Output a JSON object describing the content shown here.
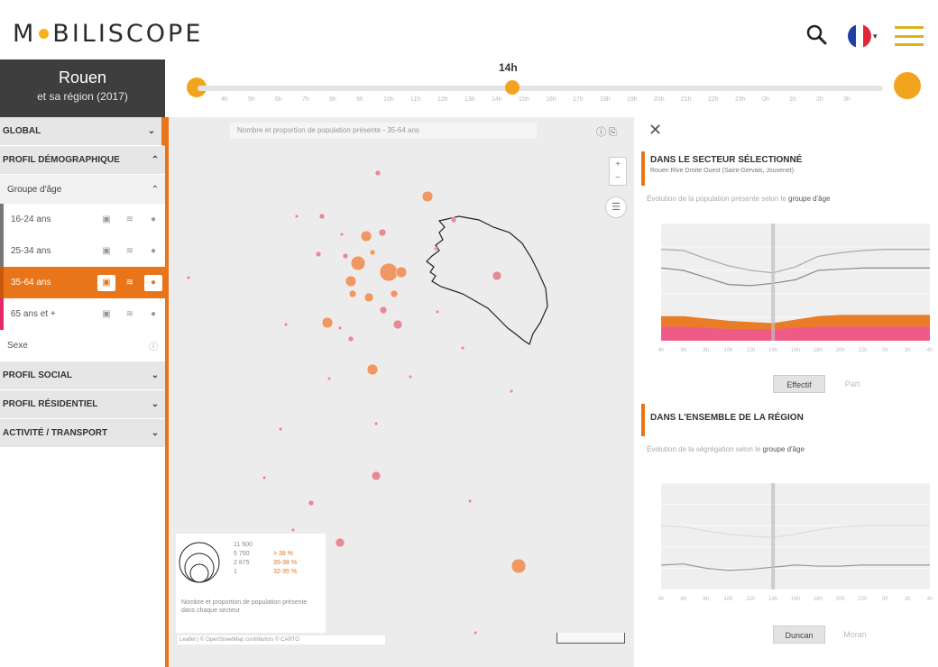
{
  "header": {
    "logo_left": "M",
    "logo_right": "BILISCOPE",
    "icons": [
      "search-icon",
      "flag-fr-icon",
      "menu-icon"
    ],
    "brand_color": "#f2a41e"
  },
  "sidebar": {
    "city": "Rouen",
    "city_sub": "et sa région (2017)",
    "global_label": "GLOBAL",
    "demo_label": "PROFIL DÉMOGRAPHIQUE",
    "sub_head": "Groupe d'âge",
    "items": [
      {
        "label": "16-24 ans",
        "bar_color": "#777"
      },
      {
        "label": "25-34 ans",
        "bar_color": "#777"
      },
      {
        "label": "35-64 ans",
        "bar_color": "#e8751a"
      },
      {
        "label": "65 ans et +",
        "bar_color": "#e5286a"
      },
      {
        "label": "Sexe",
        "bar_color": ""
      }
    ],
    "social_label": "PROFIL SOCIAL",
    "residential_label": "PROFIL RÉSIDENTIEL",
    "activity_label": "ACTIVITÉ / TRANSPORT",
    "accent": "#e8751a"
  },
  "timeline": {
    "current_hour": "14h",
    "hours": [
      "4h",
      "5h",
      "6h",
      "7h",
      "8h",
      "9h",
      "10h",
      "11h",
      "12h",
      "13h",
      "14h",
      "15h",
      "16h",
      "17h",
      "18h",
      "19h",
      "20h",
      "21h",
      "22h",
      "23h",
      "0h",
      "1h",
      "2h",
      "3h"
    ]
  },
  "map": {
    "selector_text": "Nombre et proportion de population présente - 35-64 ans",
    "map_buttons": "ⓘ ⎘",
    "legend": {
      "values": [
        "11 500",
        "5 750",
        "2 875",
        "1"
      ],
      "values_right": [
        "> 38 %",
        "35-38 %",
        "32-35 %"
      ],
      "note": "Nombre et proportion de population présente dans chaque secteur"
    },
    "attribution": "Leaflet | © OpenStreetMap contributors © CARTO"
  },
  "panel": {
    "section1_title": "DANS LE SECTEUR SÉLECTIONNÉ",
    "section1_sub": "Rouen Rive Droite Ouest (Saint-Gervais, Jouvenet)",
    "section1_ctrl": "Évolution de la population présente selon le",
    "section1_ctrl_val": "groupe d'âge",
    "btn_on_1": "Effectif",
    "btn_off_1": "Part",
    "section2_title": "DANS L'ENSEMBLE DE LA RÉGION",
    "section2_ctrl": "Évolution de la ségrégation selon le",
    "section2_ctrl_val": "groupe d'âge",
    "btn_on_2": "Duncan",
    "btn_off_2": "Moran"
  },
  "chart_data": [
    {
      "type": "area",
      "title": "",
      "x": [
        "4h",
        "6h",
        "8h",
        "10h",
        "12h",
        "14h",
        "16h",
        "18h",
        "20h",
        "22h",
        "0h",
        "2h",
        "4h"
      ],
      "series": [
        {
          "values": [
            0.78,
            0.77,
            0.7,
            0.64,
            0.6,
            0.58,
            0.63,
            0.72,
            0.75,
            0.77,
            0.78,
            0.78,
            0.78
          ],
          "color": "#aaaaaa"
        },
        {
          "values": [
            0.62,
            0.6,
            0.54,
            0.48,
            0.47,
            0.49,
            0.52,
            0.6,
            0.61,
            0.62,
            0.62,
            0.62,
            0.62
          ],
          "color": "#888888"
        },
        {
          "values": [
            0.21,
            0.21,
            0.19,
            0.17,
            0.16,
            0.15,
            0.18,
            0.21,
            0.22,
            0.22,
            0.22,
            0.22,
            0.22
          ],
          "color": "#e8751a"
        },
        {
          "values": [
            0.12,
            0.12,
            0.11,
            0.1,
            0.1,
            0.1,
            0.11,
            0.12,
            0.12,
            0.12,
            0.12,
            0.12,
            0.12
          ],
          "color": "#ef5a8c"
        }
      ],
      "current_hour_index": 5,
      "ylim": [
        0,
        1
      ]
    },
    {
      "type": "line",
      "title": "",
      "x": [
        "4h",
        "6h",
        "8h",
        "10h",
        "12h",
        "14h",
        "16h",
        "18h",
        "20h",
        "22h",
        "0h",
        "2h",
        "4h"
      ],
      "series": [
        {
          "values": [
            0.23,
            0.24,
            0.2,
            0.18,
            0.19,
            0.21,
            0.23,
            0.22,
            0.22,
            0.23,
            0.23,
            0.23,
            0.23
          ],
          "color": "#999999"
        },
        {
          "values": [
            0.6,
            0.59,
            0.55,
            0.52,
            0.5,
            0.49,
            0.52,
            0.56,
            0.59,
            0.6,
            0.6,
            0.6,
            0.6
          ],
          "color": "#dcdcdc"
        }
      ],
      "current_hour_index": 5,
      "ylim": [
        0,
        1
      ]
    }
  ]
}
